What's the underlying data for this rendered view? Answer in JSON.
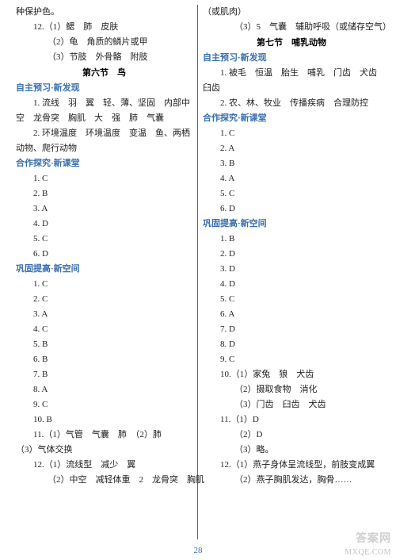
{
  "left": {
    "lines": [
      {
        "text": "种保护色。",
        "cls": "line"
      },
      {
        "text": "12.（1）鳃　肺　皮肤",
        "cls": "line indent1"
      },
      {
        "text": "（2）龟　角质的鳞片或甲",
        "cls": "line indent2"
      },
      {
        "text": "（3）节肢　外骨骼　附肢",
        "cls": "line indent2"
      },
      {
        "text": "第六节　鸟",
        "cls": "section-title"
      },
      {
        "text": "自主预习·新发现",
        "cls": "sub-header"
      },
      {
        "text": "1. 流线　羽　翼　轻、薄、坚固　内部中",
        "cls": "line indent1"
      },
      {
        "text": "空　龙骨突　胸肌　大　强　肺　气囊",
        "cls": "line"
      },
      {
        "text": "2. 环境温度　环境温度　变温　鱼、两栖",
        "cls": "line indent1"
      },
      {
        "text": "动物、爬行动物",
        "cls": "line"
      },
      {
        "text": "合作探究·新课堂",
        "cls": "sub-header"
      },
      {
        "text": "1. C",
        "cls": "line indent1"
      },
      {
        "text": "2. B",
        "cls": "line indent1"
      },
      {
        "text": "3. A",
        "cls": "line indent1"
      },
      {
        "text": "4. D",
        "cls": "line indent1"
      },
      {
        "text": "5. C",
        "cls": "line indent1"
      },
      {
        "text": "6. D",
        "cls": "line indent1"
      },
      {
        "text": "巩固提高·新空间",
        "cls": "sub-header"
      },
      {
        "text": "1. C",
        "cls": "line indent1"
      },
      {
        "text": "2. C",
        "cls": "line indent1"
      },
      {
        "text": "3. A",
        "cls": "line indent1"
      },
      {
        "text": "4. C",
        "cls": "line indent1"
      },
      {
        "text": "5. B",
        "cls": "line indent1"
      },
      {
        "text": "6. B",
        "cls": "line indent1"
      },
      {
        "text": "7. B",
        "cls": "line indent1"
      },
      {
        "text": "8. A",
        "cls": "line indent1"
      },
      {
        "text": "9. C",
        "cls": "line indent1"
      },
      {
        "text": "10. B",
        "cls": "line indent1"
      },
      {
        "text": "11.（1）气管　气囊　肺　（2）肺",
        "cls": "line indent1"
      },
      {
        "text": "（3）气体交换",
        "cls": "line"
      },
      {
        "text": "12.（1）流线型　减少　翼",
        "cls": "line indent1"
      },
      {
        "text": "（2）中空　减轻体重　2　龙骨突　胸肌",
        "cls": "line indent2"
      }
    ]
  },
  "right": {
    "lines": [
      {
        "text": "（或肌肉）",
        "cls": "line"
      },
      {
        "text": "（3）5　气囊　辅助呼吸（或储存空气）",
        "cls": "line indent2"
      },
      {
        "text": "第七节　哺乳动物",
        "cls": "section-title"
      },
      {
        "text": "自主预习·新发现",
        "cls": "sub-header"
      },
      {
        "text": "1. 被毛　恒温　胎生　哺乳　门齿　犬齿",
        "cls": "line indent1"
      },
      {
        "text": "臼齿",
        "cls": "line"
      },
      {
        "text": "2. 农、林、牧业　传播疾病　合理防控",
        "cls": "line indent1"
      },
      {
        "text": "合作探究·新课堂",
        "cls": "sub-header"
      },
      {
        "text": "1. C",
        "cls": "line indent1"
      },
      {
        "text": "2. A",
        "cls": "line indent1"
      },
      {
        "text": "3. B",
        "cls": "line indent1"
      },
      {
        "text": "4. A",
        "cls": "line indent1"
      },
      {
        "text": "5. C",
        "cls": "line indent1"
      },
      {
        "text": "6. D",
        "cls": "line indent1"
      },
      {
        "text": "巩固提高·新空间",
        "cls": "sub-header"
      },
      {
        "text": "1. B",
        "cls": "line indent1"
      },
      {
        "text": "2. D",
        "cls": "line indent1"
      },
      {
        "text": "3. D",
        "cls": "line indent1"
      },
      {
        "text": "4. D",
        "cls": "line indent1"
      },
      {
        "text": "5. C",
        "cls": "line indent1"
      },
      {
        "text": "6. A",
        "cls": "line indent1"
      },
      {
        "text": "7. D",
        "cls": "line indent1"
      },
      {
        "text": "8. D",
        "cls": "line indent1"
      },
      {
        "text": "9. C",
        "cls": "line indent1"
      },
      {
        "text": "10.（1）家兔　狼　犬齿",
        "cls": "line indent1"
      },
      {
        "text": "（2）摄取食物　消化",
        "cls": "line indent2"
      },
      {
        "text": "（3）门齿　臼齿　犬齿",
        "cls": "line indent2"
      },
      {
        "text": "11.（1）D",
        "cls": "line indent1"
      },
      {
        "text": "（2）D",
        "cls": "line indent2"
      },
      {
        "text": "（3）略。",
        "cls": "line indent2"
      },
      {
        "text": "12.（1）燕子身体呈流线型，前肢变成翼",
        "cls": "line indent1"
      },
      {
        "text": "（2）燕子胸肌发达，胸骨……",
        "cls": "line indent2"
      }
    ]
  },
  "pageNumber": "28",
  "watermark_small": "MXQE.COM",
  "watermark_big": "答案网"
}
